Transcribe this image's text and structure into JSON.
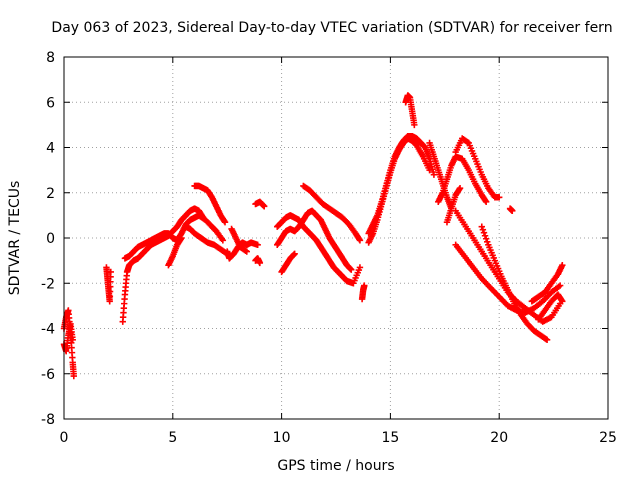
{
  "chart_data": {
    "type": "scatter",
    "title": "Day 063 of 2023, Sidereal Day-to-day VTEC variation (SDTVAR) for receiver fern",
    "xlabel": "GPS time / hours",
    "ylabel": "SDTVAR / TECUs",
    "xlim": [
      0,
      25
    ],
    "ylim": [
      -8,
      8
    ],
    "xticks": [
      0,
      5,
      10,
      15,
      20,
      25
    ],
    "yticks": [
      -8,
      -6,
      -4,
      -2,
      0,
      2,
      4,
      6,
      8
    ],
    "xtick_labels": [
      "0",
      "5",
      "10",
      "15",
      "20",
      "25"
    ],
    "ytick_labels": [
      "-8",
      "-6",
      "-4",
      "-2",
      "0",
      "2",
      "4",
      "6",
      "8"
    ],
    "grid": true,
    "marker": "plus",
    "color": "#ff0000",
    "series": [
      {
        "name": "s1",
        "x": [
          0.0,
          0.1,
          0.2,
          0.3,
          0.4,
          0.45
        ],
        "y": [
          -4.0,
          -3.5,
          -3.2,
          -4.2,
          -5.5,
          -6.1
        ]
      },
      {
        "name": "s2",
        "x": [
          0.0,
          0.1,
          0.2,
          0.3,
          0.4
        ],
        "y": [
          -4.7,
          -5.0,
          -4.3,
          -3.8,
          -4.5
        ]
      },
      {
        "name": "s3",
        "x": [
          1.95,
          2.0,
          2.05,
          2.1,
          2.15
        ],
        "y": [
          -1.3,
          -1.8,
          -2.3,
          -2.8,
          -1.5
        ]
      },
      {
        "name": "s4",
        "x": [
          2.7,
          2.8,
          2.9,
          3.0,
          3.2,
          3.4,
          3.6,
          3.8,
          4.0,
          4.2,
          4.4,
          4.6,
          4.8,
          5.0,
          5.2,
          5.4,
          5.6,
          5.8,
          6.0,
          6.2,
          6.4
        ],
        "y": [
          -3.7,
          -2.5,
          -1.5,
          -1.2,
          -1.0,
          -0.9,
          -0.7,
          -0.5,
          -0.3,
          -0.2,
          -0.1,
          0.0,
          0.1,
          0.3,
          0.5,
          0.8,
          1.0,
          1.2,
          1.3,
          1.2,
          0.9
        ]
      },
      {
        "name": "s5",
        "x": [
          2.8,
          3.0,
          3.2,
          3.4,
          3.6,
          3.8,
          4.0,
          4.2,
          4.4,
          4.6,
          4.8,
          5.0,
          5.2,
          5.4,
          5.6,
          5.8,
          6.0,
          6.2,
          6.5,
          6.8,
          7.0,
          7.3
        ],
        "y": [
          -0.9,
          -0.8,
          -0.6,
          -0.4,
          -0.3,
          -0.2,
          -0.1,
          0.0,
          0.1,
          0.2,
          0.2,
          0.0,
          -0.1,
          0.2,
          0.6,
          0.8,
          0.9,
          1.0,
          0.8,
          0.5,
          0.3,
          -0.1
        ]
      },
      {
        "name": "s6",
        "x": [
          5.6,
          5.8,
          6.0,
          6.3,
          6.6,
          6.9,
          7.2,
          7.5
        ],
        "y": [
          0.5,
          0.4,
          0.2,
          0.0,
          -0.2,
          -0.3,
          -0.5,
          -0.7
        ]
      },
      {
        "name": "s7",
        "x": [
          4.8,
          5.0,
          5.2,
          5.4
        ],
        "y": [
          -1.2,
          -0.8,
          -0.3,
          0.0
        ]
      },
      {
        "name": "s8",
        "x": [
          6.0,
          6.2,
          6.4,
          6.6,
          6.8,
          7.0,
          7.2,
          7.4
        ],
        "y": [
          2.3,
          2.3,
          2.2,
          2.1,
          1.8,
          1.4,
          1.0,
          0.7
        ]
      },
      {
        "name": "s9",
        "x": [
          7.5,
          7.6,
          7.8,
          8.0,
          8.2,
          8.4,
          8.6,
          8.9
        ],
        "y": [
          -0.6,
          -0.9,
          -0.7,
          -0.4,
          -0.2,
          -0.3,
          -0.2,
          -0.3
        ]
      },
      {
        "name": "s10",
        "x": [
          7.7,
          7.9,
          8.1,
          8.4
        ],
        "y": [
          0.4,
          0.0,
          -0.4,
          -0.6
        ]
      },
      {
        "name": "s11",
        "x": [
          8.8,
          9.0,
          9.2
        ],
        "y": [
          1.5,
          1.6,
          1.4
        ]
      },
      {
        "name": "s12",
        "x": [
          8.8,
          8.9,
          9.0
        ],
        "y": [
          -1.0,
          -0.9,
          -1.1
        ]
      },
      {
        "name": "s13",
        "x": [
          9.8,
          10.0,
          10.2,
          10.4,
          10.6,
          10.8,
          11.0,
          11.2,
          11.4,
          11.6,
          11.8,
          12.0,
          12.2,
          12.4,
          12.6,
          12.8,
          13.0,
          13.2
        ],
        "y": [
          -0.3,
          0.0,
          0.3,
          0.4,
          0.3,
          0.5,
          0.8,
          1.1,
          1.2,
          1.0,
          0.8,
          0.4,
          0.0,
          -0.3,
          -0.6,
          -0.9,
          -1.2,
          -1.4
        ]
      },
      {
        "name": "s14",
        "x": [
          9.8,
          10.0,
          10.2,
          10.4,
          10.6,
          10.8,
          11.0,
          11.2,
          11.4,
          11.6,
          11.8,
          12.0,
          12.2,
          12.4,
          12.6,
          12.8,
          13.0,
          13.3,
          13.6
        ],
        "y": [
          0.5,
          0.7,
          0.9,
          1.0,
          0.9,
          0.8,
          0.5,
          0.3,
          0.1,
          -0.1,
          -0.4,
          -0.7,
          -1.0,
          -1.3,
          -1.5,
          -1.7,
          -1.9,
          -2.0,
          -1.3
        ]
      },
      {
        "name": "s15",
        "x": [
          11.0,
          11.3,
          11.6,
          11.9,
          12.2,
          12.5,
          12.8,
          13.1,
          13.4,
          13.6
        ],
        "y": [
          2.3,
          2.1,
          1.8,
          1.5,
          1.3,
          1.1,
          0.9,
          0.6,
          0.2,
          -0.1
        ]
      },
      {
        "name": "s16",
        "x": [
          10.0,
          10.2,
          10.4,
          10.6
        ],
        "y": [
          -1.5,
          -1.2,
          -0.9,
          -0.7
        ]
      },
      {
        "name": "s17",
        "x": [
          13.7,
          13.75,
          13.8
        ],
        "y": [
          -2.7,
          -2.3,
          -2.1
        ]
      },
      {
        "name": "s18",
        "x": [
          14.0,
          14.2,
          14.4,
          14.6,
          14.8,
          15.0,
          15.2,
          15.4,
          15.6,
          15.8,
          16.0,
          16.2,
          16.4,
          16.6,
          16.8,
          17.0
        ],
        "y": [
          0.2,
          0.6,
          1.0,
          1.6,
          2.3,
          3.0,
          3.6,
          4.0,
          4.3,
          4.5,
          4.5,
          4.4,
          4.2,
          4.0,
          3.5,
          2.8
        ]
      },
      {
        "name": "s19",
        "x": [
          14.0,
          14.2,
          14.4,
          14.6,
          14.8,
          15.0,
          15.2,
          15.4,
          15.6,
          15.8,
          16.0,
          16.2,
          16.5,
          16.8
        ],
        "y": [
          -0.2,
          0.2,
          0.8,
          1.5,
          2.2,
          2.9,
          3.5,
          3.9,
          4.2,
          4.4,
          4.3,
          4.1,
          3.6,
          3.0
        ]
      },
      {
        "name": "s20",
        "x": [
          15.7,
          15.8,
          15.9,
          16.0,
          16.1
        ],
        "y": [
          6.0,
          6.3,
          6.2,
          5.6,
          5.0
        ]
      },
      {
        "name": "s21",
        "x": [
          16.8,
          17.0,
          17.2,
          17.4,
          17.6,
          17.8
        ],
        "y": [
          4.2,
          3.6,
          3.0,
          2.4,
          1.8,
          1.3
        ]
      },
      {
        "name": "s22",
        "x": [
          17.2,
          17.4,
          17.6,
          17.8,
          18.0,
          18.3,
          18.6,
          18.9,
          19.2,
          19.4
        ],
        "y": [
          1.6,
          2.0,
          2.6,
          3.2,
          3.6,
          3.5,
          3.0,
          2.4,
          1.9,
          1.6
        ]
      },
      {
        "name": "s23",
        "x": [
          18.0,
          18.3,
          18.6,
          18.9,
          19.2,
          19.5,
          19.8,
          20.0
        ],
        "y": [
          3.8,
          4.4,
          4.2,
          3.5,
          2.8,
          2.2,
          1.8,
          1.8
        ]
      },
      {
        "name": "s24",
        "x": [
          17.6,
          17.8,
          18.0,
          18.2
        ],
        "y": [
          0.7,
          1.3,
          1.9,
          2.2
        ]
      },
      {
        "name": "s25",
        "x": [
          18.0,
          18.4,
          18.8,
          19.2,
          19.6,
          20.0,
          20.4,
          20.8,
          21.2,
          21.6,
          22.0,
          22.4,
          22.8
        ],
        "y": [
          -0.3,
          -0.8,
          -1.3,
          -1.8,
          -2.2,
          -2.6,
          -3.0,
          -3.2,
          -3.3,
          -3.1,
          -2.8,
          -2.4,
          -2.1
        ]
      },
      {
        "name": "s26",
        "x": [
          18.0,
          18.4,
          18.8,
          19.2,
          19.6,
          20.0,
          20.4,
          20.8,
          21.2,
          21.6,
          22.0,
          22.4,
          22.8
        ],
        "y": [
          1.2,
          0.6,
          0.0,
          -0.6,
          -1.2,
          -1.8,
          -2.4,
          -2.8,
          -3.1,
          -3.4,
          -3.7,
          -3.5,
          -2.9
        ]
      },
      {
        "name": "s27",
        "x": [
          19.2,
          19.5,
          19.8,
          20.1,
          20.4,
          20.7,
          21.0,
          21.3,
          21.6,
          21.9,
          22.2
        ],
        "y": [
          0.5,
          -0.3,
          -1.0,
          -1.7,
          -2.3,
          -2.9,
          -3.4,
          -3.8,
          -4.1,
          -4.3,
          -4.5
        ]
      },
      {
        "name": "s28",
        "x": [
          21.5,
          21.8,
          22.1,
          22.4,
          22.7,
          22.9
        ],
        "y": [
          -2.8,
          -2.6,
          -2.4,
          -2.0,
          -1.6,
          -1.2
        ]
      },
      {
        "name": "s29",
        "x": [
          20.5,
          20.6
        ],
        "y": [
          1.3,
          1.2
        ]
      },
      {
        "name": "s30",
        "x": [
          21.8,
          22.1,
          22.4,
          22.7,
          22.9
        ],
        "y": [
          -3.6,
          -3.2,
          -2.8,
          -2.5,
          -2.8
        ]
      }
    ]
  }
}
